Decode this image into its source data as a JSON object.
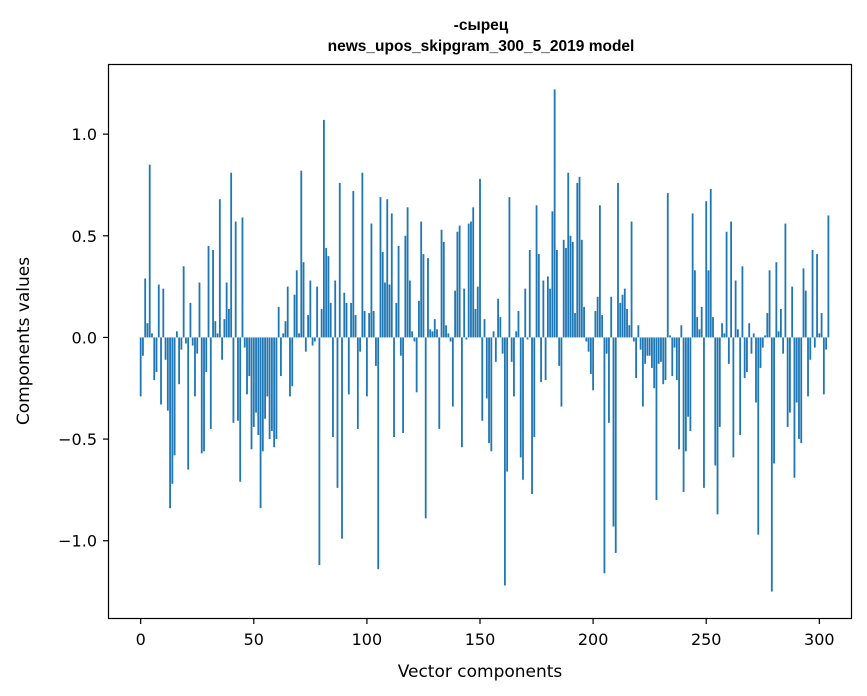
{
  "chart_data": {
    "type": "bar",
    "title": "-сырец",
    "subtitle": "news_upos_skipgram_300_5_2019 model",
    "xlabel": "Vector components",
    "ylabel": "Components values",
    "xlim": [
      -14,
      314
    ],
    "ylim": [
      -1.38,
      1.34
    ],
    "xticks": [
      0,
      50,
      100,
      150,
      200,
      250,
      300
    ],
    "xtick_labels": [
      "0",
      "50",
      "100",
      "150",
      "200",
      "250",
      "300"
    ],
    "yticks": [
      -1.0,
      -0.5,
      0.0,
      0.5,
      1.0
    ],
    "ytick_labels": [
      "−1.0",
      "−0.5",
      "0.0",
      "0.5",
      "1.0"
    ],
    "bar_color": "#1f77b4",
    "grid": false,
    "values": [
      -0.29,
      -0.09,
      0.29,
      0.07,
      0.85,
      0.02,
      -0.21,
      -0.17,
      0.26,
      -0.33,
      0.24,
      -0.11,
      -0.36,
      -0.84,
      -0.72,
      -0.58,
      0.03,
      -0.23,
      -0.06,
      0.35,
      -0.03,
      -0.65,
      0.17,
      -0.04,
      -0.29,
      -0.08,
      0.27,
      -0.57,
      -0.56,
      -0.17,
      0.45,
      -0.45,
      0.43,
      0.08,
      0.02,
      0.68,
      -0.11,
      0.09,
      0.27,
      0.14,
      0.81,
      -0.42,
      0.57,
      -0.41,
      -0.71,
      0.59,
      -0.05,
      -0.28,
      -0.19,
      -0.55,
      -0.44,
      -0.37,
      -0.48,
      -0.84,
      -0.56,
      -0.4,
      -0.29,
      -0.5,
      -0.46,
      -0.54,
      -0.5,
      0.15,
      -0.19,
      0.02,
      0.08,
      0.25,
      -0.29,
      -0.24,
      0.21,
      0.33,
      0.02,
      0.82,
      0.37,
      -0.07,
      0.11,
      0.28,
      -0.04,
      -0.02,
      0.25,
      -1.12,
      0.14,
      1.07,
      0.44,
      0.4,
      0.17,
      -0.49,
      0.28,
      -0.74,
      0.76,
      -0.99,
      0.22,
      0.17,
      -0.28,
      0.17,
      0.72,
      0.11,
      -0.45,
      -0.07,
      0.81,
      0.13,
      -0.29,
      0.12,
      0.56,
      0.13,
      -0.14,
      -1.14,
      0.69,
      0.42,
      0.27,
      0.68,
      0.26,
      0.61,
      -0.49,
      0.17,
      0.45,
      -0.09,
      -0.47,
      0.5,
      0.64,
      0.28,
      0.03,
      -0.02,
      -0.27,
      0.18,
      0.57,
      0.41,
      -0.89,
      0.39,
      0.04,
      0.03,
      0.09,
      0.04,
      -0.45,
      0.53,
      0.47,
      0.06,
      0.02,
      -0.02,
      -0.34,
      0.23,
      0.52,
      0.55,
      -0.54,
      0.24,
      -0.01,
      0.56,
      0.57,
      0.64,
      0.14,
      0.25,
      0.78,
      -0.41,
      0.09,
      -0.3,
      -0.52,
      -0.56,
      0.03,
      -0.12,
      0.19,
      0.1,
      -0.08,
      -1.22,
      -0.66,
      0.69,
      -0.12,
      -0.29,
      0.03,
      0.13,
      -0.59,
      -0.7,
      0.24,
      -0.01,
      0.43,
      -0.77,
      -0.49,
      0.65,
      0.41,
      -0.22,
      0.28,
      -0.21,
      0.3,
      0.24,
      0.62,
      1.22,
      0.43,
      -0.14,
      -0.34,
      0.48,
      0.44,
      0.81,
      0.5,
      0.47,
      0.12,
      0.76,
      0.79,
      0.48,
      0.15,
      -0.02,
      -0.07,
      -0.18,
      -0.26,
      0.13,
      0.2,
      0.65,
      0.11,
      -1.16,
      -0.08,
      -0.42,
      0.2,
      -0.93,
      -1.06,
      0.76,
      0.17,
      0.21,
      0.24,
      0.14,
      0.06,
      0.57,
      -0.02,
      -0.2,
      0.06,
      -0.06,
      -0.34,
      -0.13,
      -0.09,
      -0.09,
      -0.15,
      -0.25,
      -0.8,
      -0.13,
      -0.12,
      -0.23,
      -0.21,
      0.71,
      0.01,
      -0.19,
      -0.05,
      -0.21,
      -0.55,
      0.06,
      -0.76,
      -0.56,
      -0.39,
      -0.46,
      0.61,
      0.33,
      0.1,
      0.04,
      0.15,
      -0.74,
      0.67,
      0.33,
      0.73,
      0.1,
      -0.63,
      -0.87,
      -0.44,
      0.07,
      0.02,
      0.52,
      -0.13,
      0.57,
      -0.59,
      0.28,
      0.04,
      -0.48,
      0.35,
      -0.2,
      -0.17,
      0.07,
      -0.08,
      0.02,
      -0.32,
      -0.97,
      -0.15,
      -0.05,
      0.01,
      0.12,
      0.33,
      -1.25,
      -0.62,
      0.37,
      0.03,
      0.14,
      -0.08,
      0.56,
      -0.44,
      -0.37,
      0.25,
      -0.69,
      -0.32,
      -0.5,
      -0.52,
      0.34,
      0.23,
      -0.29,
      -0.11,
      0.43,
      -0.05,
      0.41,
      0.02,
      0.12,
      -0.28,
      -0.06,
      0.6
    ]
  }
}
